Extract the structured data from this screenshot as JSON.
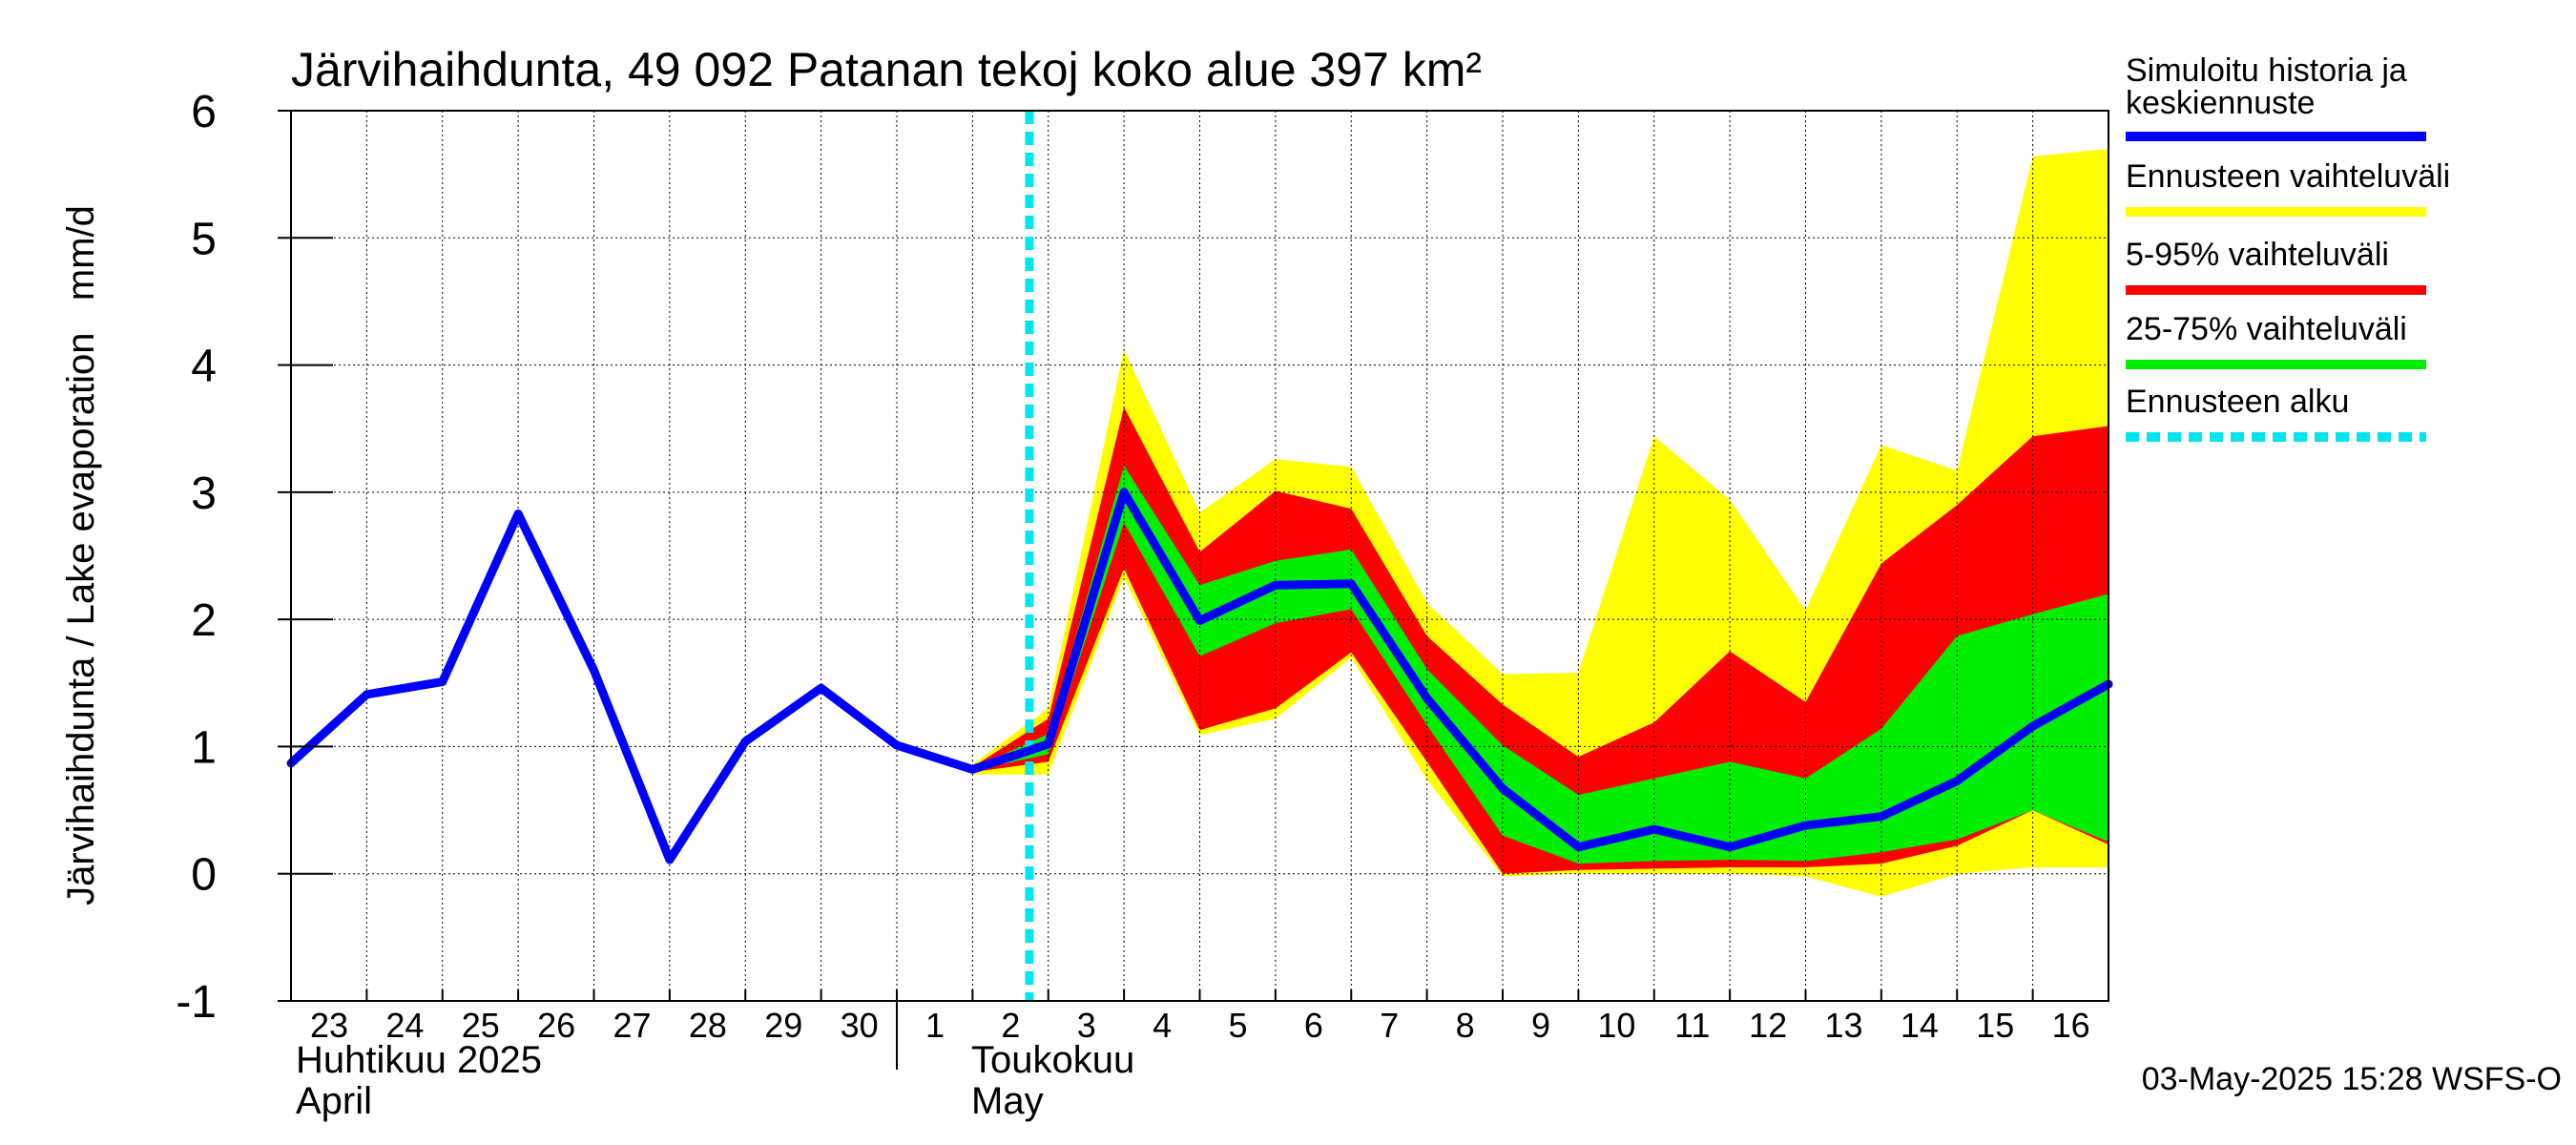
{
  "chart_data": {
    "type": "area",
    "title": "Järvihaihdunta, 49 092 Patanan tekoj koko alue 397 km²",
    "ylabel": "Järvihaihdunta / Lake evaporation   mm/d",
    "ylim": [
      -1,
      6
    ],
    "yticks": [
      -1,
      0,
      1,
      2,
      3,
      4,
      5,
      6
    ],
    "xlim": [
      "2025-04-23",
      "2025-05-16"
    ],
    "day_labels": [
      "23",
      "24",
      "25",
      "26",
      "27",
      "28",
      "29",
      "30",
      "1",
      "2",
      "3",
      "4",
      "5",
      "6",
      "7",
      "8",
      "9",
      "10",
      "11",
      "12",
      "13",
      "14",
      "15",
      "16"
    ],
    "month_labels": [
      {
        "fi": "Huhtikuu  2025",
        "en": "April"
      },
      {
        "fi": "Toukokuu",
        "en": "May"
      }
    ],
    "grid": true,
    "legend_position": "right",
    "forecast_start": "2025-05-02T18:00",
    "timestamp": "03-May-2025 15:28 WSFS-O",
    "legend": [
      {
        "label": "Simuloitu historia ja keskiennuste",
        "color": "#0000ff",
        "style": "solid"
      },
      {
        "label": "Ennusteen vaihteluväli",
        "color": "#ffff00",
        "style": "solid"
      },
      {
        "label": "5-95% vaihteluväli",
        "color": "#ff0000",
        "style": "solid"
      },
      {
        "label": "25-75% vaihteluväli",
        "color": "#00ee00",
        "style": "solid"
      },
      {
        "label": "Ennusteen alku",
        "color": "#00e5ee",
        "style": "dashed"
      }
    ],
    "series": [
      {
        "name": "Simuloitu historia ja keskiennuste",
        "x": [
          "2025-04-23",
          "2025-04-24",
          "2025-04-25",
          "2025-04-26",
          "2025-04-27",
          "2025-04-28",
          "2025-04-29",
          "2025-04-30",
          "2025-05-01",
          "2025-05-02",
          "2025-05-03",
          "2025-05-04",
          "2025-05-05",
          "2025-05-06",
          "2025-05-07",
          "2025-05-08",
          "2025-05-09",
          "2025-05-10",
          "2025-05-11",
          "2025-05-12",
          "2025-05-13",
          "2025-05-14",
          "2025-05-15",
          "2025-05-16",
          "2025-05-17"
        ],
        "values": [
          0.87,
          1.41,
          1.51,
          2.83,
          1.6,
          0.11,
          1.04,
          1.46,
          1.01,
          0.82,
          1.02,
          3.0,
          1.99,
          2.27,
          2.28,
          1.38,
          0.67,
          0.21,
          0.35,
          0.21,
          0.38,
          0.45,
          0.73,
          1.16,
          1.49
        ]
      }
    ],
    "bands": {
      "x": [
        "2025-05-02",
        "2025-05-03",
        "2025-05-04",
        "2025-05-05",
        "2025-05-06",
        "2025-05-07",
        "2025-05-08",
        "2025-05-09",
        "2025-05-10",
        "2025-05-11",
        "2025-05-12",
        "2025-05-13",
        "2025-05-14",
        "2025-05-15",
        "2025-05-16",
        "2025-05-17"
      ],
      "range": {
        "color": "#ffff00",
        "lower": [
          0.78,
          0.78,
          2.33,
          1.09,
          1.22,
          1.7,
          0.74,
          -0.02,
          0.0,
          0.0,
          0.0,
          -0.02,
          -0.18,
          0.0,
          0.05,
          0.05
        ],
        "upper": [
          0.86,
          1.3,
          4.12,
          2.84,
          3.26,
          3.2,
          2.13,
          1.57,
          1.58,
          3.44,
          2.94,
          2.07,
          3.37,
          3.17,
          5.64,
          5.7
        ]
      },
      "p5_95": {
        "color": "#ff0000",
        "lower": [
          0.8,
          0.88,
          2.4,
          1.13,
          1.3,
          1.74,
          0.88,
          0.0,
          0.03,
          0.04,
          0.05,
          0.05,
          0.08,
          0.22,
          0.5,
          0.23
        ],
        "upper": [
          0.84,
          1.22,
          3.67,
          2.53,
          3.01,
          2.87,
          1.87,
          1.33,
          0.92,
          1.19,
          1.75,
          1.35,
          2.44,
          2.9,
          3.44,
          3.52
        ]
      },
      "p25_75": {
        "color": "#00ee00",
        "lower": [
          0.81,
          0.94,
          2.76,
          1.71,
          1.97,
          2.08,
          1.17,
          0.3,
          0.08,
          0.1,
          0.11,
          0.1,
          0.17,
          0.27,
          0.5,
          0.25
        ],
        "upper": [
          0.83,
          1.1,
          3.21,
          2.27,
          2.46,
          2.55,
          1.61,
          1.01,
          0.62,
          0.75,
          0.88,
          0.75,
          1.14,
          1.87,
          2.04,
          2.2
        ]
      }
    }
  }
}
